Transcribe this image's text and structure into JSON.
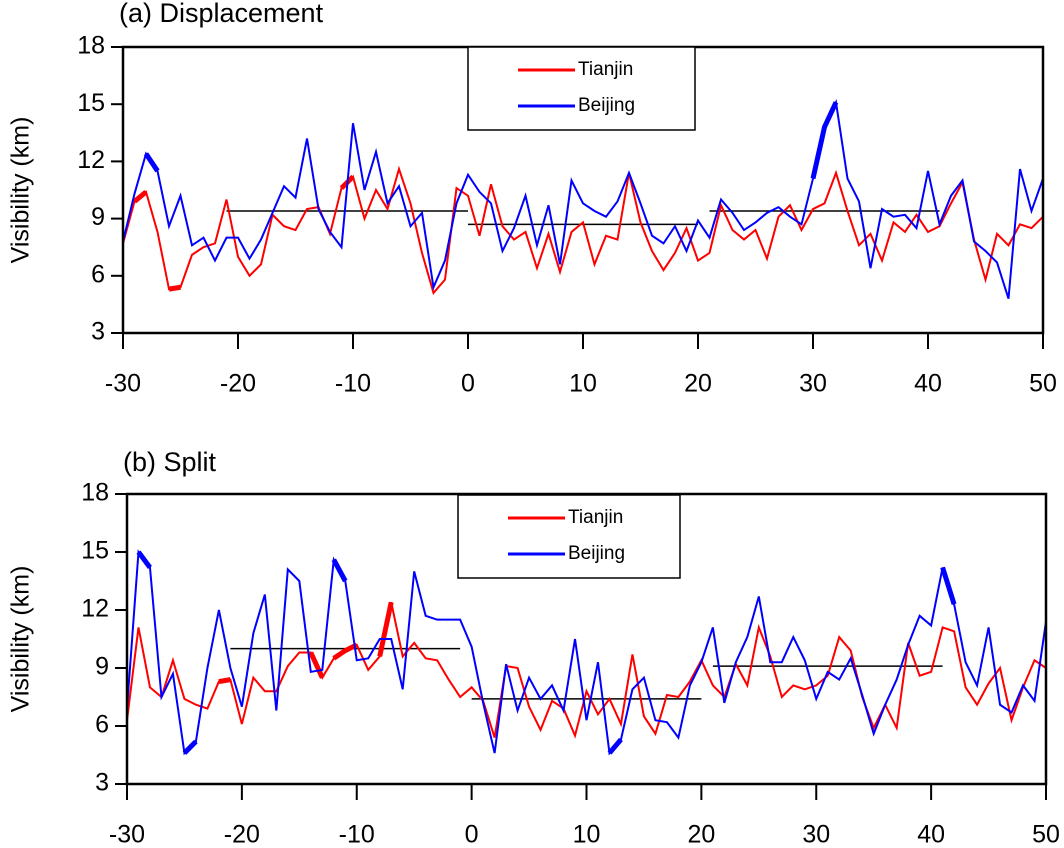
{
  "chart_data": [
    {
      "type": "line",
      "title": "(a) Displacement",
      "y_label": "Visibility (km)",
      "x": [
        -30,
        -29,
        -28,
        -27,
        -26,
        -25,
        -24,
        -23,
        -22,
        -21,
        -20,
        -19,
        -18,
        -17,
        -16,
        -15,
        -14,
        -13,
        -12,
        -11,
        -10,
        -9,
        -8,
        -7,
        -6,
        -5,
        -4,
        -3,
        -2,
        -1,
        0,
        1,
        2,
        3,
        4,
        5,
        6,
        7,
        8,
        9,
        10,
        11,
        12,
        13,
        14,
        15,
        16,
        17,
        18,
        19,
        20,
        21,
        22,
        23,
        24,
        25,
        26,
        27,
        28,
        29,
        30,
        31,
        32,
        33,
        34,
        35,
        36,
        37,
        38,
        39,
        40,
        41,
        42,
        43,
        44,
        45,
        46,
        47,
        48,
        49,
        50
      ],
      "xlim": [
        -30,
        50
      ],
      "xticks": [
        -30,
        -20,
        -10,
        0,
        10,
        20,
        30,
        40,
        50
      ],
      "ylim": [
        3,
        18
      ],
      "yticks": [
        3,
        6,
        9,
        12,
        15,
        18
      ],
      "series": [
        {
          "name": "Tianjin",
          "color": "#ff0000",
          "highlight": [
            [
              -29,
              -28
            ],
            [
              -26,
              -25
            ],
            [
              -11,
              -10
            ]
          ],
          "values": [
            7.7,
            9.9,
            10.4,
            8.3,
            5.3,
            5.4,
            7.1,
            7.5,
            7.7,
            10.0,
            7.0,
            6.0,
            6.6,
            9.2,
            8.6,
            8.4,
            9.5,
            9.6,
            8.2,
            10.6,
            11.2,
            9.0,
            10.5,
            9.5,
            11.6,
            9.8,
            7.2,
            5.1,
            5.8,
            10.6,
            10.2,
            8.1,
            10.8,
            8.6,
            7.9,
            8.3,
            6.4,
            8.2,
            6.2,
            8.3,
            8.8,
            6.6,
            8.1,
            7.9,
            11.4,
            8.8,
            7.3,
            6.3,
            7.2,
            8.5,
            6.8,
            7.2,
            9.7,
            8.4,
            7.9,
            8.4,
            6.9,
            9.1,
            9.7,
            8.4,
            9.5,
            9.8,
            11.4,
            9.4,
            7.6,
            8.2,
            6.8,
            8.8,
            8.3,
            9.2,
            8.3,
            8.6,
            9.8,
            10.9,
            7.9,
            5.8,
            8.2,
            7.6,
            8.7,
            8.5,
            9.1
          ]
        },
        {
          "name": "Beijing",
          "color": "#0000ff",
          "highlight": [
            [
              -28,
              -27
            ],
            [
              30,
              32
            ]
          ],
          "values": [
            7.8,
            10.3,
            12.4,
            11.5,
            8.6,
            10.2,
            7.6,
            8.0,
            6.8,
            8.0,
            8.0,
            6.9,
            7.9,
            9.3,
            10.7,
            10.1,
            13.2,
            9.5,
            8.3,
            7.5,
            14.0,
            10.5,
            12.5,
            9.8,
            10.7,
            8.6,
            9.3,
            5.4,
            6.8,
            9.8,
            11.3,
            10.4,
            9.8,
            7.3,
            8.5,
            10.2,
            7.6,
            9.7,
            6.6,
            11.0,
            9.8,
            9.4,
            9.1,
            9.9,
            11.4,
            9.8,
            8.1,
            7.7,
            8.6,
            7.3,
            8.9,
            8.0,
            10.0,
            9.3,
            8.4,
            8.8,
            9.3,
            9.6,
            9.1,
            8.7,
            11.1,
            13.8,
            15.1,
            11.1,
            9.9,
            6.4,
            9.5,
            9.1,
            9.2,
            8.5,
            11.5,
            8.7,
            10.2,
            11.0,
            7.8,
            7.3,
            6.7,
            4.8,
            11.6,
            9.4,
            11.1
          ]
        }
      ],
      "mean_lines": [
        {
          "x": [
            -21,
            0
          ],
          "value": 9.4
        },
        {
          "x": [
            0,
            20
          ],
          "value": 8.7
        },
        {
          "x": [
            21,
            41
          ],
          "value": 9.4
        }
      ]
    },
    {
      "type": "line",
      "title": "(b) Split",
      "y_label": "Visibility (km)",
      "x": [
        -30,
        -29,
        -28,
        -27,
        -26,
        -25,
        -24,
        -23,
        -22,
        -21,
        -20,
        -19,
        -18,
        -17,
        -16,
        -15,
        -14,
        -13,
        -12,
        -11,
        -10,
        -9,
        -8,
        -7,
        -6,
        -5,
        -4,
        -3,
        -2,
        -1,
        0,
        1,
        2,
        3,
        4,
        5,
        6,
        7,
        8,
        9,
        10,
        11,
        12,
        13,
        14,
        15,
        16,
        17,
        18,
        19,
        20,
        21,
        22,
        23,
        24,
        25,
        26,
        27,
        28,
        29,
        30,
        31,
        32,
        33,
        34,
        35,
        36,
        37,
        38,
        39,
        40,
        41,
        42,
        43,
        44,
        45,
        46,
        47,
        48,
        49,
        50
      ],
      "xlim": [
        -30,
        50
      ],
      "xticks": [
        -30,
        -20,
        -10,
        0,
        10,
        20,
        30,
        40,
        50
      ],
      "ylim": [
        3,
        18
      ],
      "yticks": [
        3,
        6,
        9,
        12,
        15,
        18
      ],
      "series": [
        {
          "name": "Tianjin",
          "color": "#ff0000",
          "highlight": [
            [
              -22,
              -21
            ],
            [
              -14,
              -13
            ],
            [
              -12,
              -10
            ],
            [
              -8,
              -7
            ]
          ],
          "values": [
            6.3,
            11.1,
            8.0,
            7.5,
            9.4,
            7.4,
            7.1,
            6.9,
            8.3,
            8.4,
            6.1,
            8.5,
            7.8,
            7.8,
            9.1,
            9.8,
            9.8,
            8.5,
            9.5,
            9.9,
            10.2,
            8.9,
            9.6,
            12.4,
            9.6,
            10.3,
            9.5,
            9.4,
            8.4,
            7.5,
            8.0,
            7.3,
            5.4,
            9.1,
            9.0,
            7.0,
            5.8,
            7.3,
            6.9,
            5.5,
            7.8,
            6.6,
            7.4,
            6.1,
            9.7,
            6.5,
            5.6,
            7.6,
            7.5,
            8.3,
            9.4,
            8.1,
            7.5,
            9.2,
            8.1,
            11.1,
            9.6,
            7.5,
            8.1,
            7.9,
            8.1,
            8.6,
            10.6,
            9.9,
            7.5,
            5.9,
            7.1,
            5.9,
            10.3,
            8.6,
            8.8,
            11.1,
            10.9,
            8.0,
            7.1,
            8.2,
            9.0,
            6.3,
            8.0,
            9.4,
            9.0
          ]
        },
        {
          "name": "Beijing",
          "color": "#0000ff",
          "highlight": [
            [
              -29,
              -28
            ],
            [
              -25,
              -24
            ],
            [
              -12,
              -11
            ],
            [
              12,
              13
            ],
            [
              41,
              42
            ]
          ],
          "values": [
            6.9,
            15.0,
            14.2,
            7.5,
            8.7,
            4.6,
            5.2,
            9.0,
            12.0,
            9.0,
            7.0,
            10.8,
            12.8,
            6.8,
            14.1,
            13.5,
            8.8,
            8.9,
            14.6,
            13.5,
            9.4,
            9.5,
            10.5,
            10.5,
            7.9,
            14.0,
            11.7,
            11.5,
            11.5,
            11.5,
            10.1,
            7.2,
            4.6,
            9.2,
            6.8,
            8.5,
            7.4,
            8.1,
            6.8,
            10.5,
            6.3,
            9.3,
            4.6,
            5.3,
            7.9,
            8.5,
            6.3,
            6.2,
            5.4,
            8.1,
            9.3,
            11.1,
            7.2,
            9.3,
            10.6,
            12.7,
            9.3,
            9.3,
            10.6,
            9.4,
            7.4,
            8.8,
            8.4,
            9.5,
            7.6,
            5.6,
            7.1,
            8.4,
            10.2,
            11.7,
            11.2,
            14.2,
            12.3,
            9.3,
            8.1,
            11.1,
            7.1,
            6.7,
            8.1,
            7.3,
            11.4
          ]
        }
      ],
      "mean_lines": [
        {
          "x": [
            -21,
            -1
          ],
          "value": 10.0
        },
        {
          "x": [
            0,
            20
          ],
          "value": 7.4
        },
        {
          "x": [
            21,
            41
          ],
          "value": 9.1
        }
      ]
    }
  ]
}
